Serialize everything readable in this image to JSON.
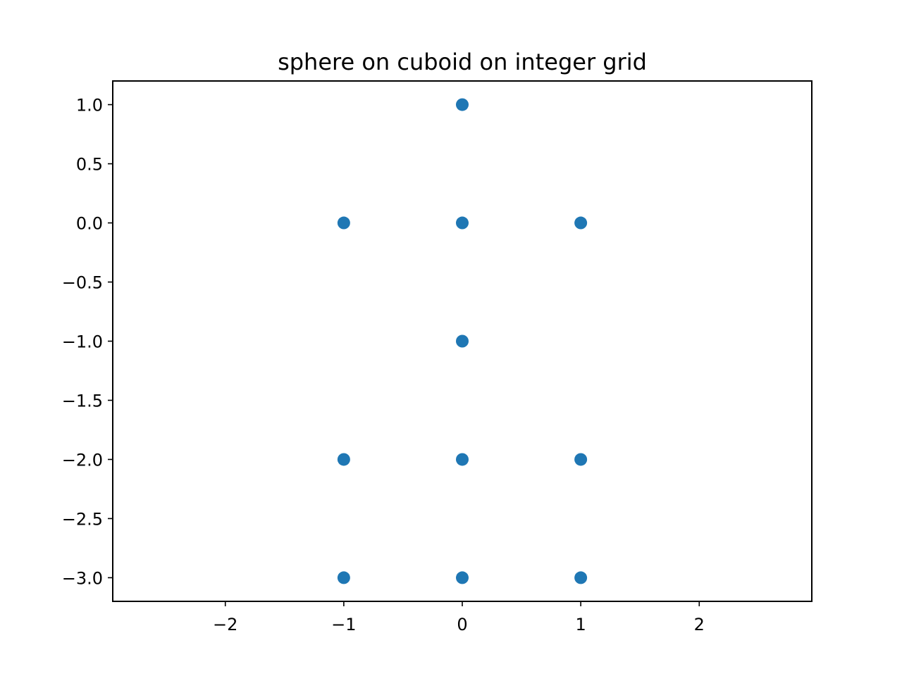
{
  "chart_data": {
    "type": "scatter",
    "title": "sphere on cuboid on integer grid",
    "xlabel": "",
    "ylabel": "",
    "xlim": [
      -2.95,
      2.95
    ],
    "ylim": [
      -3.2,
      1.2
    ],
    "x_ticks": [
      -2,
      -1,
      0,
      1,
      2
    ],
    "x_tick_labels": [
      "−2",
      "−1",
      "0",
      "1",
      "2"
    ],
    "y_ticks": [
      1.0,
      0.5,
      0.0,
      -0.5,
      -1.0,
      -1.5,
      -2.0,
      -2.5,
      -3.0
    ],
    "y_tick_labels": [
      "1.0",
      "0.5",
      "0.0",
      "−0.5",
      "−1.0",
      "−1.5",
      "−2.0",
      "−2.5",
      "−3.0"
    ],
    "grid": false,
    "series": [
      {
        "color": "#1f77b4",
        "points": [
          {
            "x": 0,
            "y": 1
          },
          {
            "x": -1,
            "y": 0
          },
          {
            "x": 0,
            "y": 0
          },
          {
            "x": 1,
            "y": 0
          },
          {
            "x": 0,
            "y": -1
          },
          {
            "x": -1,
            "y": -2
          },
          {
            "x": 0,
            "y": -2
          },
          {
            "x": 1,
            "y": -2
          },
          {
            "x": -1,
            "y": -3
          },
          {
            "x": 0,
            "y": -3
          },
          {
            "x": 1,
            "y": -3
          }
        ]
      }
    ]
  }
}
